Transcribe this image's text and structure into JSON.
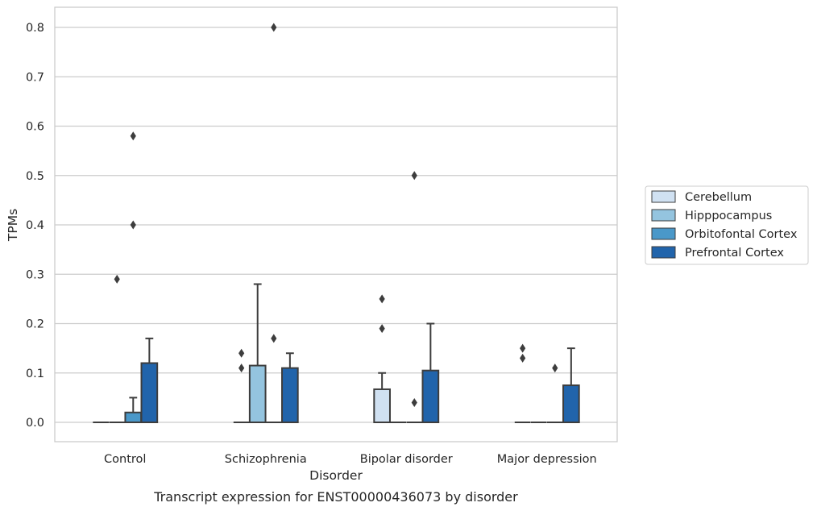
{
  "chart_data": {
    "type": "box",
    "title": "",
    "caption": "Transcript expression for ENST00000436073 by disorder",
    "xlabel": "Disorder",
    "ylabel": "TPMs",
    "ylim": [
      -0.04,
      0.84
    ],
    "yticks": [
      "0.0",
      "0.1",
      "0.2",
      "0.3",
      "0.4",
      "0.5",
      "0.6",
      "0.7",
      "0.8"
    ],
    "grid": "horizontal",
    "legend_position": "right",
    "categories": [
      "Control",
      "Schizophrenia",
      "Bipolar disorder",
      "Major depression"
    ],
    "series": [
      {
        "name": "Cerebellum",
        "color": "#d0e1f2",
        "boxes": [
          {
            "q1": 0,
            "median": 0,
            "q3": 0,
            "whisker_low": 0,
            "whisker_high": 0,
            "outliers": []
          },
          {
            "q1": 0,
            "median": 0,
            "q3": 0,
            "whisker_low": 0,
            "whisker_high": 0,
            "outliers": [
              0.11,
              0.14
            ]
          },
          {
            "q1": 0,
            "median": 0,
            "q3": 0.067,
            "whisker_low": 0,
            "whisker_high": 0.1,
            "outliers": [
              0.19,
              0.25
            ]
          },
          {
            "q1": 0,
            "median": 0,
            "q3": 0,
            "whisker_low": 0,
            "whisker_high": 0,
            "outliers": [
              0.13,
              0.15
            ]
          }
        ]
      },
      {
        "name": "Hipppocampus",
        "color": "#94c4df",
        "boxes": [
          {
            "q1": 0,
            "median": 0,
            "q3": 0,
            "whisker_low": 0,
            "whisker_high": 0,
            "outliers": [
              0.29
            ]
          },
          {
            "q1": 0,
            "median": 0,
            "q3": 0.115,
            "whisker_low": 0,
            "whisker_high": 0.28,
            "outliers": []
          },
          {
            "q1": 0,
            "median": 0,
            "q3": 0,
            "whisker_low": 0,
            "whisker_high": 0,
            "outliers": []
          },
          {
            "q1": 0,
            "median": 0,
            "q3": 0,
            "whisker_low": 0,
            "whisker_high": 0,
            "outliers": []
          }
        ]
      },
      {
        "name": "Orbitofontal Cortex",
        "color": "#4a98c9",
        "boxes": [
          {
            "q1": 0,
            "median": 0,
            "q3": 0.02,
            "whisker_low": 0,
            "whisker_high": 0.05,
            "outliers": [
              0.4,
              0.58
            ]
          },
          {
            "q1": 0,
            "median": 0,
            "q3": 0,
            "whisker_low": 0,
            "whisker_high": 0,
            "outliers": [
              0.17,
              0.8
            ]
          },
          {
            "q1": 0,
            "median": 0,
            "q3": 0,
            "whisker_low": 0,
            "whisker_high": 0,
            "outliers": [
              0.04,
              0.5
            ]
          },
          {
            "q1": 0,
            "median": 0,
            "q3": 0,
            "whisker_low": 0,
            "whisker_high": 0,
            "outliers": [
              0.11
            ]
          }
        ]
      },
      {
        "name": "Prefrontal Cortex",
        "color": "#2164ab",
        "boxes": [
          {
            "q1": 0,
            "median": 0,
            "q3": 0.12,
            "whisker_low": 0,
            "whisker_high": 0.17,
            "outliers": []
          },
          {
            "q1": 0,
            "median": 0,
            "q3": 0.11,
            "whisker_low": 0,
            "whisker_high": 0.14,
            "outliers": []
          },
          {
            "q1": 0,
            "median": 0,
            "q3": 0.105,
            "whisker_low": 0,
            "whisker_high": 0.2,
            "outliers": []
          },
          {
            "q1": 0,
            "median": 0,
            "q3": 0.075,
            "whisker_low": 0,
            "whisker_high": 0.15,
            "outliers": []
          }
        ]
      }
    ]
  }
}
